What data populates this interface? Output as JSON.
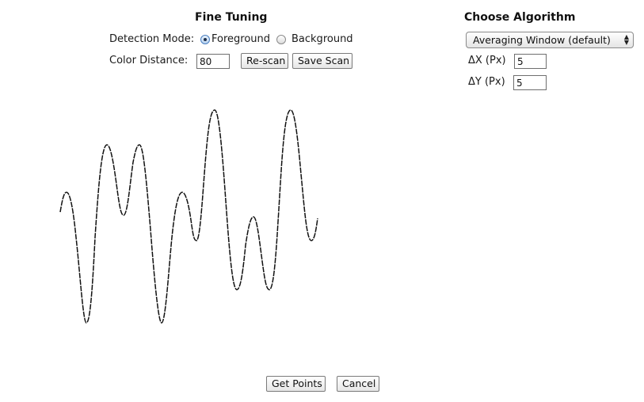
{
  "fine_tuning": {
    "title": "Fine Tuning",
    "detection_mode_label": "Detection Mode:",
    "foreground_label": "Foreground",
    "background_label": "Background",
    "selected_mode": "Foreground",
    "color_distance_label": "Color Distance:",
    "color_distance_value": "80",
    "rescan_label": "Re-scan",
    "save_scan_label": "Save Scan"
  },
  "algorithm": {
    "title": "Choose Algorithm",
    "selected": "Averaging Window (default)",
    "dx_label": "ΔX (Px)",
    "dx_value": "5",
    "dy_label": "ΔY (Px)",
    "dy_value": "5"
  },
  "actions": {
    "get_points_label": "Get Points",
    "cancel_label": "Cancel"
  },
  "colors": {
    "curve": "#111111",
    "radio_selected": "#4a7fc1"
  },
  "icons": {
    "select_arrows": "up-down-chevron-icon"
  }
}
